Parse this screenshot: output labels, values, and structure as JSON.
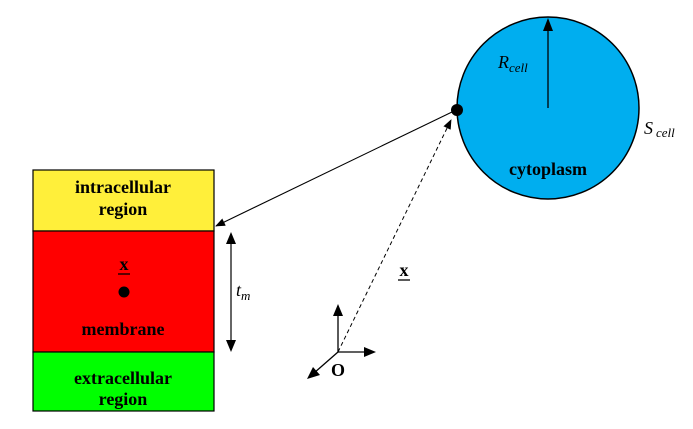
{
  "colors": {
    "intracellular_fill": "#FFEF3A",
    "membrane_fill": "#FF0000",
    "extracellular_fill": "#00FF00",
    "cell_fill": "#00AEEF",
    "stroke": "#000000"
  },
  "labels": {
    "intracellular_line1": "intracellular",
    "intracellular_line2": "region",
    "membrane_vector": "x",
    "membrane": "membrane",
    "extracellular_line1": "extracellular",
    "extracellular_line2": "region",
    "thickness_symbol": "t",
    "thickness_subscript": "m",
    "position_vector": "x",
    "origin": "O",
    "radius_symbol": "R",
    "radius_subscript": "cell",
    "surface_symbol": "S",
    "surface_subscript": "cell",
    "cytoplasm": "cytoplasm"
  }
}
